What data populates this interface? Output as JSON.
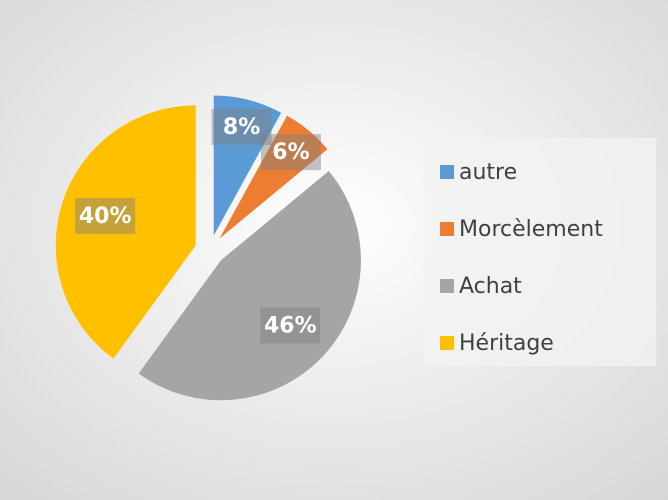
{
  "chart_data": {
    "type": "pie",
    "categories": [
      "autre",
      "Morcèlement",
      "Achat",
      "Héritage"
    ],
    "values": [
      8,
      6,
      46,
      40
    ],
    "value_labels": [
      "8%",
      "6%",
      "46%",
      "40%"
    ],
    "colors": [
      "#5b9bd5",
      "#ed7d31",
      "#a5a5a5",
      "#ffc000"
    ],
    "legend": "right"
  }
}
